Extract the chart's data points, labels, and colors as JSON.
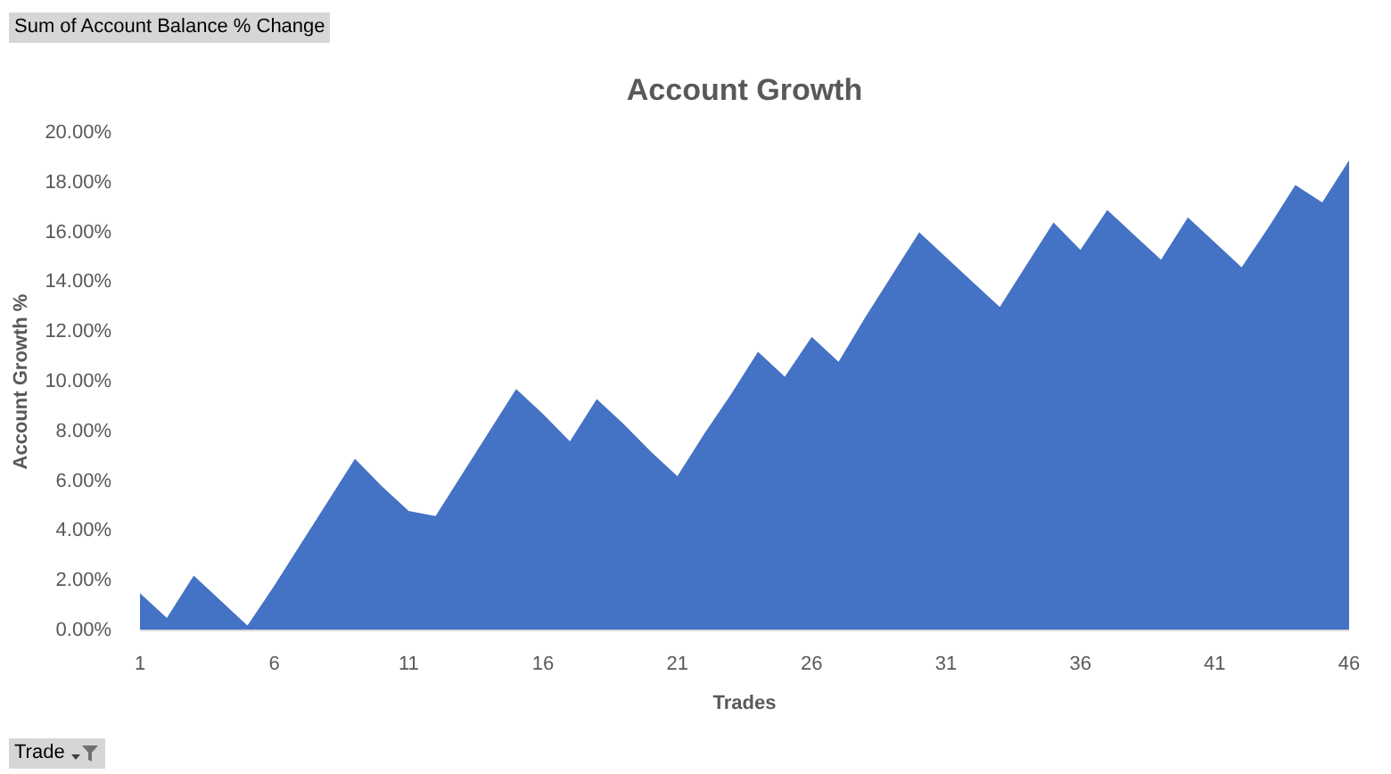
{
  "chart_data": {
    "type": "area",
    "title": "Account Growth",
    "xlabel": "Trades",
    "ylabel": "Account Growth %",
    "categories": [
      "1",
      null,
      null,
      null,
      null,
      "6",
      null,
      null,
      null,
      null,
      "11",
      null,
      null,
      null,
      null,
      "16",
      null,
      null,
      null,
      null,
      "21",
      null,
      null,
      null,
      null,
      "26",
      null,
      null,
      null,
      null,
      "31",
      null,
      null,
      null,
      null,
      "36",
      null,
      null,
      null,
      null,
      "41",
      null,
      null,
      null,
      null,
      "46"
    ],
    "values": [
      1.5,
      0.5,
      2.2,
      1.2,
      0.2,
      1.8,
      3.5,
      5.2,
      6.9,
      5.8,
      4.8,
      4.6,
      6.3,
      8.0,
      9.7,
      8.7,
      7.6,
      9.3,
      8.3,
      7.2,
      6.2,
      7.9,
      9.5,
      11.2,
      10.2,
      11.8,
      10.8,
      12.6,
      14.3,
      16.0,
      15.0,
      14.0,
      13.0,
      14.7,
      16.4,
      15.3,
      16.9,
      15.9,
      14.9,
      16.6,
      15.6,
      14.6,
      16.2,
      17.9,
      17.2,
      18.9
    ],
    "color": "#4472c4",
    "ylim": [
      0,
      20
    ],
    "yticks": [
      {
        "value": 0,
        "label": "0.00%"
      },
      {
        "value": 2,
        "label": "2.00%"
      },
      {
        "value": 4,
        "label": "4.00%"
      },
      {
        "value": 6,
        "label": "6.00%"
      },
      {
        "value": 8,
        "label": "8.00%"
      },
      {
        "value": 10,
        "label": "10.00%"
      },
      {
        "value": 12,
        "label": "12.00%"
      },
      {
        "value": 14,
        "label": "14.00%"
      },
      {
        "value": 16,
        "label": "16.00%"
      },
      {
        "value": 18,
        "label": "18.00%"
      },
      {
        "value": 20,
        "label": "20.00%"
      }
    ],
    "grid": false,
    "annotations": [
      "Sum of Account Balance % Change",
      "Trade"
    ]
  }
}
